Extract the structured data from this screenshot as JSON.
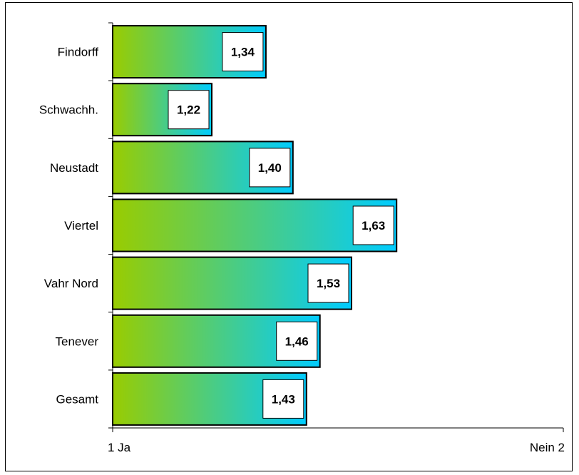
{
  "chart_data": {
    "type": "bar",
    "orientation": "horizontal",
    "categories": [
      "Findorff",
      "Schwachh.",
      "Neustadt",
      "Viertel",
      "Vahr Nord",
      "Tenever",
      "Gesamt"
    ],
    "values": [
      1.34,
      1.22,
      1.4,
      1.63,
      1.53,
      1.46,
      1.43
    ],
    "data_labels": [
      "1,34",
      "1,22",
      "1,40",
      "1,63",
      "1,53",
      "1,46",
      "1,43"
    ],
    "xlim": [
      1,
      2
    ],
    "xticks": [
      {
        "value": 1,
        "label": "1 Ja"
      },
      {
        "value": 2,
        "label": "Nein 2"
      }
    ],
    "title": "",
    "xlabel": "",
    "ylabel": "",
    "grid": false,
    "legend": "none",
    "bar_gradient": [
      "#99cc00",
      "#00ccff"
    ]
  }
}
